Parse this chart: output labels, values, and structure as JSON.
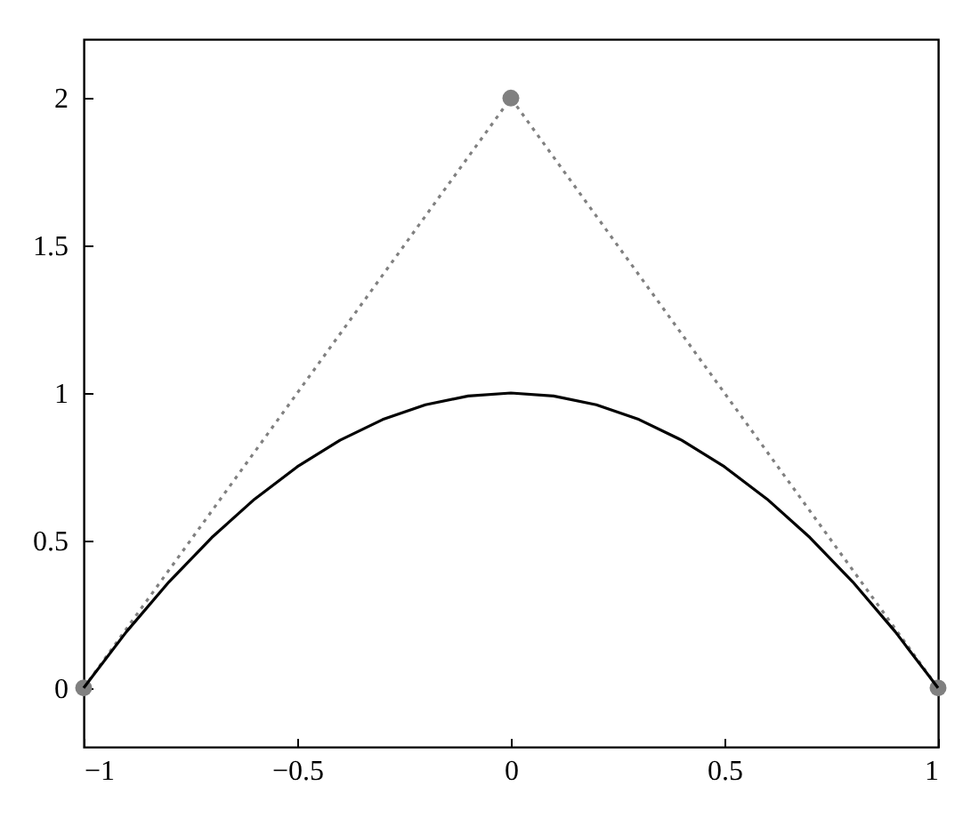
{
  "chart_data": {
    "type": "line",
    "xlim": [
      -1,
      1
    ],
    "xticks": [
      -1,
      -0.5,
      0,
      0.5,
      1
    ],
    "ylim": [
      -0.2,
      2.2
    ],
    "yticks": [
      0,
      0.5,
      1,
      1.5,
      2
    ],
    "series": [
      {
        "color": "#808080",
        "x": [
          -1,
          0,
          1
        ],
        "values": [
          0,
          2,
          0
        ],
        "marker": "circle",
        "line_style": "dotted"
      },
      {
        "color": "#000000",
        "x": [
          -1,
          -0.9,
          -0.8,
          -0.7,
          -0.6,
          -0.5,
          -0.4,
          -0.3,
          -0.2,
          -0.1,
          0,
          0.1,
          0.2,
          0.3,
          0.4,
          0.5,
          0.6,
          0.7,
          0.8,
          0.9,
          1
        ],
        "values": [
          0,
          0.19,
          0.36,
          0.51,
          0.64,
          0.75,
          0.84,
          0.91,
          0.96,
          0.99,
          1,
          0.99,
          0.96,
          0.91,
          0.84,
          0.75,
          0.64,
          0.51,
          0.36,
          0.19,
          0
        ],
        "marker": "none",
        "line_style": "solid"
      }
    ]
  }
}
